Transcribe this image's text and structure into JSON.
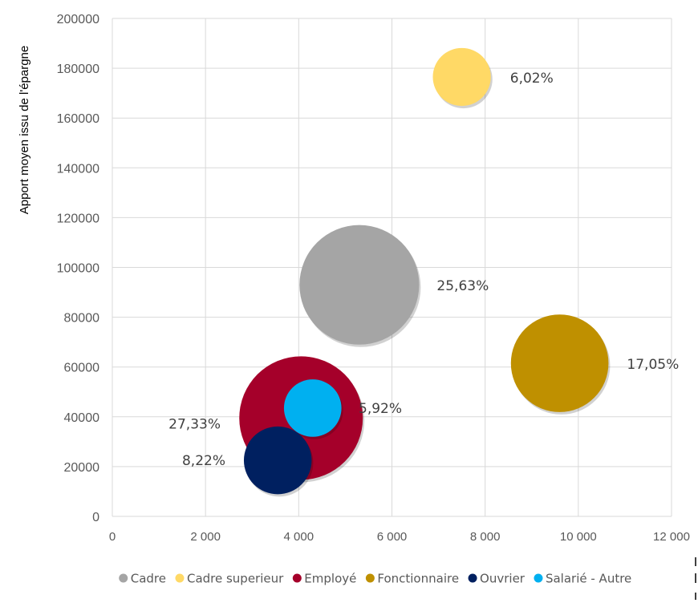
{
  "chart_data": {
    "type": "bubble",
    "ylabel": "Apport moyen issu de l'épargne",
    "xlim": [
      0,
      12000
    ],
    "ylim": [
      0,
      200000
    ],
    "x_ticks": [
      "0",
      "2 000",
      "4 000",
      "6 000",
      "8 000",
      "10 000",
      "12 000"
    ],
    "y_ticks": [
      "0",
      "20000",
      "40000",
      "60000",
      "80000",
      "100000",
      "120000",
      "140000",
      "160000",
      "180000",
      "200000"
    ],
    "grid": true,
    "legend_position": "bottom",
    "series": [
      {
        "name": "Cadre",
        "x": 5300,
        "y": 93000,
        "size": 25.63,
        "label": "25,63%",
        "color": "#a5a5a5"
      },
      {
        "name": "Cadre superieur",
        "x": 7500,
        "y": 176500,
        "size": 6.02,
        "label": "6,02%",
        "color": "#ffd966"
      },
      {
        "name": "Employé",
        "x": 4050,
        "y": 39500,
        "size": 27.33,
        "label": "27,33%",
        "color": "#a5002a"
      },
      {
        "name": "Fonctionnaire",
        "x": 9600,
        "y": 61500,
        "size": 17.05,
        "label": "17,05%",
        "color": "#bf9000"
      },
      {
        "name": "Ouvrier",
        "x": 3550,
        "y": 22500,
        "size": 8.22,
        "label": "8,22%",
        "color": "#002060"
      },
      {
        "name": "Salarié - Autre",
        "x": 4300,
        "y": 43500,
        "size": 5.92,
        "label": "5,92%",
        "color": "#00b0f0"
      }
    ]
  }
}
